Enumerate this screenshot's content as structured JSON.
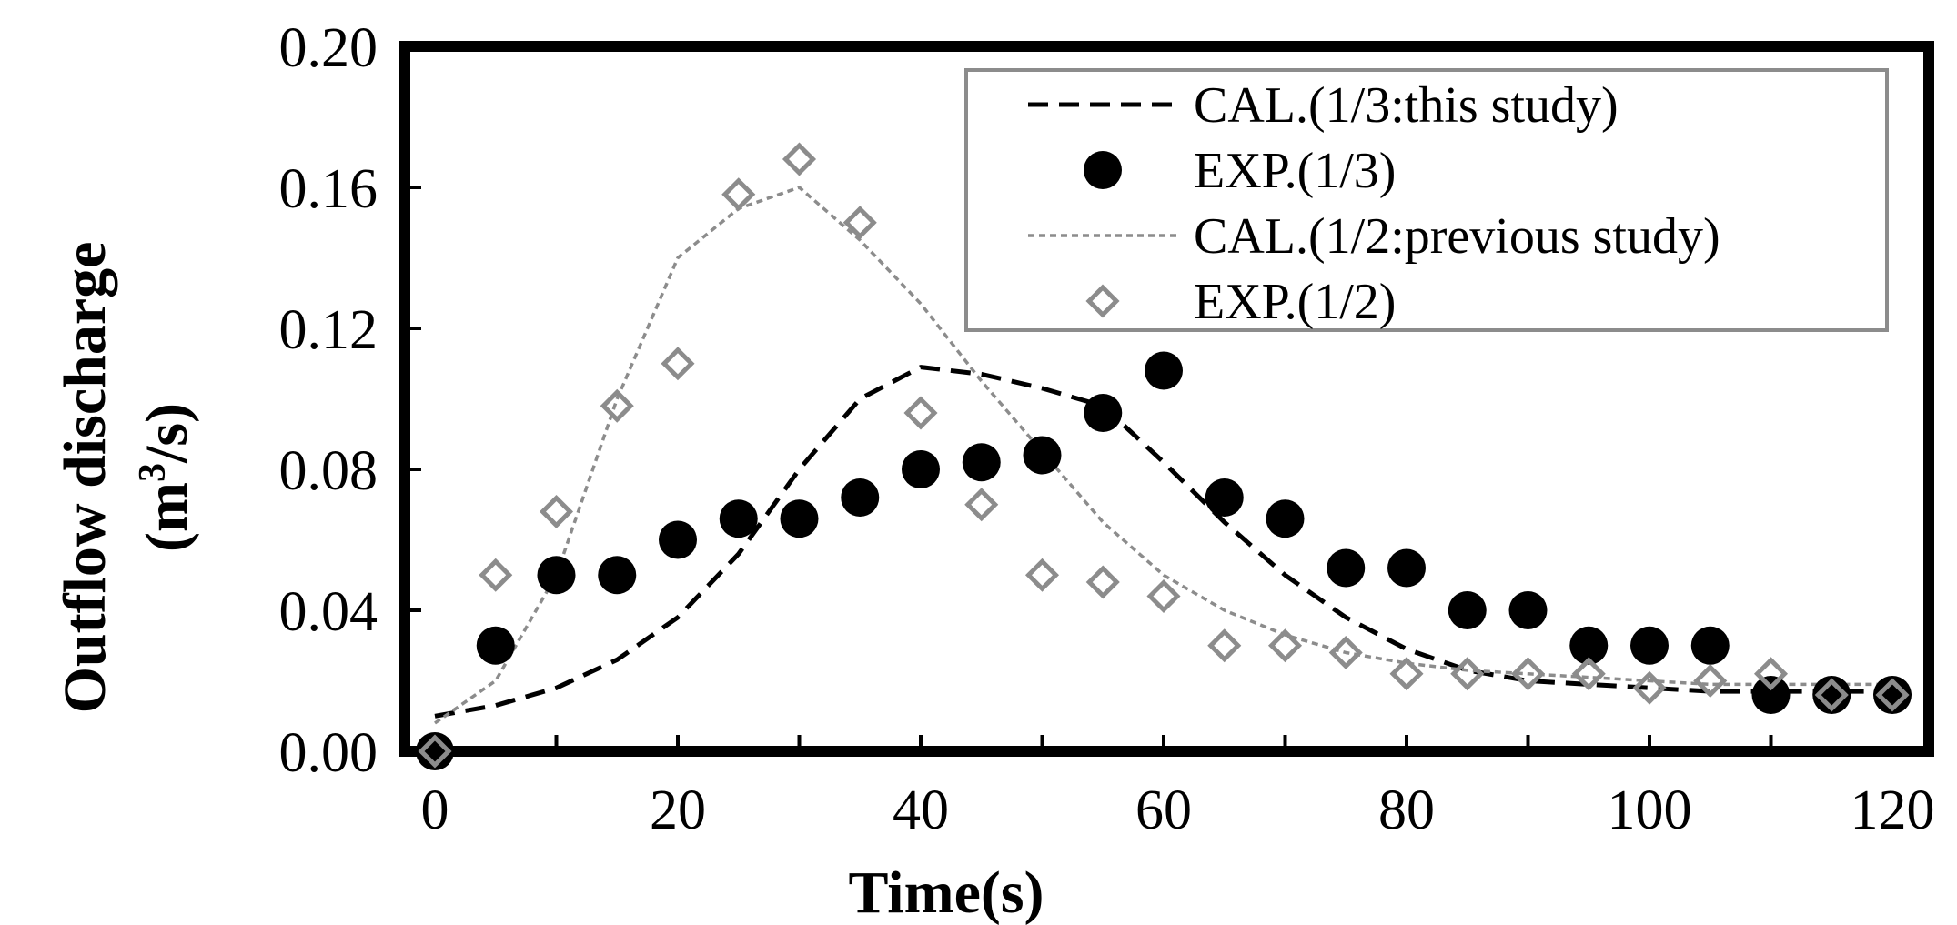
{
  "chart_data": {
    "type": "line",
    "xlabel": "Time(s)",
    "ylabel_line1": "Outflow discharge",
    "ylabel_line2_prefix": "(m",
    "ylabel_line2_sup": "3",
    "ylabel_line2_suffix": "/s)",
    "xlim": [
      0,
      120
    ],
    "ylim": [
      0,
      0.2
    ],
    "x_ticks": [
      0,
      20,
      40,
      60,
      80,
      100,
      120
    ],
    "y_ticks": [
      0.0,
      0.04,
      0.08,
      0.12,
      0.16,
      0.2
    ],
    "x_tick_labels": [
      "0",
      "20",
      "40",
      "60",
      "80",
      "100",
      "120"
    ],
    "y_tick_labels": [
      "0.00",
      "0.04",
      "0.08",
      "0.12",
      "0.16",
      "0.20"
    ],
    "legend_position": "top-right",
    "series": [
      {
        "name": "CAL.(1/3:this study)",
        "kind": "line",
        "style": "dashed-black",
        "color": "#000000",
        "x": [
          0,
          5,
          10,
          15,
          20,
          25,
          30,
          35,
          40,
          45,
          50,
          55,
          60,
          65,
          70,
          75,
          80,
          85,
          90,
          95,
          100,
          105,
          110,
          115,
          120
        ],
        "y": [
          0.01,
          0.013,
          0.018,
          0.026,
          0.038,
          0.056,
          0.08,
          0.1,
          0.109,
          0.107,
          0.103,
          0.098,
          0.082,
          0.065,
          0.05,
          0.038,
          0.029,
          0.023,
          0.02,
          0.019,
          0.018,
          0.017,
          0.017,
          0.017,
          0.017
        ]
      },
      {
        "name": "EXP.(1/3)",
        "kind": "scatter",
        "style": "filled-circle",
        "color": "#000000",
        "x": [
          0,
          5,
          10,
          15,
          20,
          25,
          30,
          35,
          40,
          45,
          50,
          55,
          60,
          65,
          70,
          75,
          80,
          85,
          90,
          95,
          100,
          105,
          110,
          115,
          120
        ],
        "y": [
          0.0,
          0.03,
          0.05,
          0.05,
          0.06,
          0.066,
          0.066,
          0.072,
          0.08,
          0.082,
          0.084,
          0.096,
          0.108,
          0.072,
          0.066,
          0.052,
          0.052,
          0.04,
          0.04,
          0.03,
          0.03,
          0.03,
          0.016,
          0.016,
          0.016
        ]
      },
      {
        "name": "CAL.(1/2:previous study)",
        "kind": "line",
        "style": "short-dashed-gray",
        "color": "#8c8c8c",
        "x": [
          0,
          5,
          10,
          15,
          20,
          25,
          30,
          35,
          40,
          45,
          50,
          55,
          60,
          65,
          70,
          75,
          80,
          85,
          90,
          95,
          100,
          105,
          110,
          115,
          120
        ],
        "y": [
          0.008,
          0.02,
          0.05,
          0.1,
          0.14,
          0.154,
          0.16,
          0.145,
          0.127,
          0.105,
          0.085,
          0.065,
          0.05,
          0.04,
          0.033,
          0.028,
          0.025,
          0.023,
          0.022,
          0.021,
          0.02,
          0.019,
          0.019,
          0.019,
          0.019
        ]
      },
      {
        "name": "EXP.(1/2)",
        "kind": "scatter",
        "style": "open-diamond",
        "color": "#8c8c8c",
        "x": [
          0,
          5,
          10,
          15,
          20,
          25,
          30,
          35,
          40,
          45,
          50,
          55,
          60,
          65,
          70,
          75,
          80,
          85,
          90,
          95,
          100,
          105,
          110,
          115,
          120
        ],
        "y": [
          0.0,
          0.05,
          0.068,
          0.098,
          0.11,
          0.158,
          0.168,
          0.15,
          0.096,
          0.07,
          0.05,
          0.048,
          0.044,
          0.03,
          0.03,
          0.028,
          0.022,
          0.022,
          0.022,
          0.022,
          0.018,
          0.02,
          0.022,
          0.016,
          0.016
        ]
      }
    ]
  }
}
